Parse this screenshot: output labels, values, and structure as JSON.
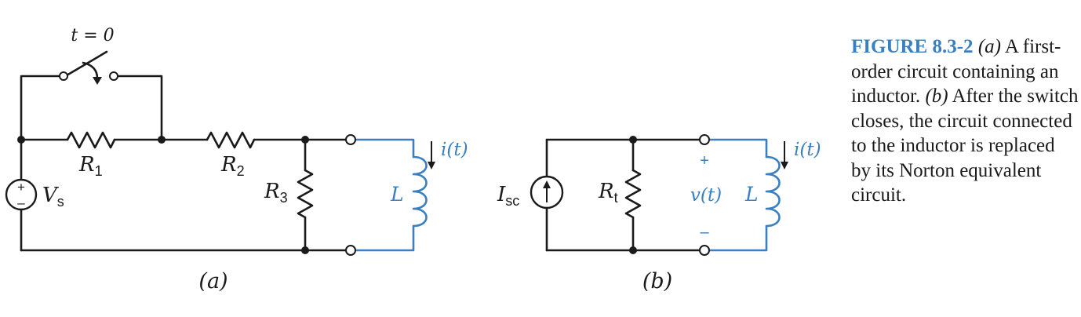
{
  "diagram_a": {
    "switch_label": "t = 0",
    "r1": {
      "sym": "R",
      "sub": "1"
    },
    "r2": {
      "sym": "R",
      "sub": "2"
    },
    "r3": {
      "sym": "R",
      "sub": "3"
    },
    "vs": {
      "sym": "V",
      "sub": "s"
    },
    "source_plus": "+",
    "source_minus": "–",
    "inductor": "L",
    "current": "i(t)",
    "caption": "(a)"
  },
  "diagram_b": {
    "isc": {
      "sym": "I",
      "sub": "sc"
    },
    "rt": {
      "sym": "R",
      "sub": "t"
    },
    "voltage": "v(t)",
    "plus": "+",
    "minus": "–",
    "inductor": "L",
    "current": "i(t)",
    "caption": "(b)"
  },
  "caption": {
    "figure_label": "FIGURE 8.3-2",
    "part_a_marker": "(a)",
    "part_a_text": " A first-order circuit containing an inductor. ",
    "part_b_marker": "(b)",
    "part_b_text": " After the switch closes, the circuit connected to the inductor is replaced by its Norton equivalent circuit."
  },
  "colors": {
    "accent": "#3a7fc1",
    "ink": "#1a1a1a"
  }
}
